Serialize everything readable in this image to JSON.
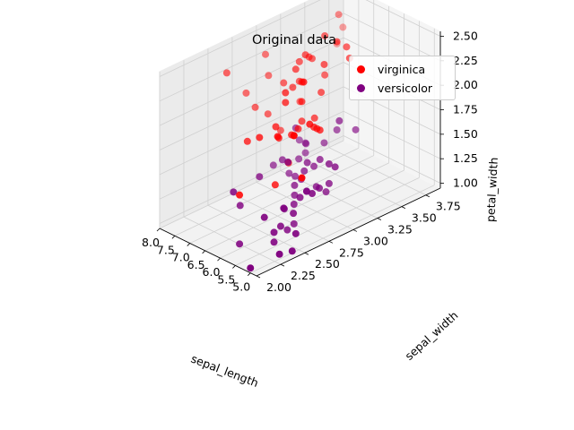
{
  "chart_data": {
    "type": "scatter",
    "projection": "3d",
    "title": "Original data",
    "xlabel": "sepal_length",
    "ylabel": "sepal_width",
    "zlabel": "petal_width",
    "xlim": [
      4.8,
      8.0
    ],
    "ylim": [
      2.0,
      3.9
    ],
    "zlim": [
      0.95,
      2.55
    ],
    "xticks": [
      "5.0",
      "5.5",
      "6.0",
      "6.5",
      "7.0",
      "7.5",
      "8.0"
    ],
    "yticks": [
      "2.00",
      "2.25",
      "2.50",
      "2.75",
      "3.00",
      "3.25",
      "3.50",
      "3.75"
    ],
    "zticks": [
      "1.00",
      "1.25",
      "1.50",
      "1.75",
      "2.00",
      "2.25",
      "2.50"
    ],
    "grid": true,
    "legend_position": "top-right",
    "series": [
      {
        "name": "virginica",
        "color": "#ff0000",
        "points": [
          [
            6.3,
            3.3,
            2.5
          ],
          [
            5.8,
            2.7,
            1.9
          ],
          [
            7.1,
            3.0,
            2.1
          ],
          [
            6.3,
            2.9,
            1.8
          ],
          [
            6.5,
            3.0,
            2.2
          ],
          [
            7.6,
            3.0,
            2.1
          ],
          [
            4.9,
            2.5,
            1.7
          ],
          [
            7.3,
            2.9,
            1.8
          ],
          [
            6.7,
            2.5,
            1.8
          ],
          [
            7.2,
            3.6,
            2.5
          ],
          [
            6.5,
            3.2,
            2.0
          ],
          [
            6.4,
            2.7,
            1.9
          ],
          [
            6.8,
            3.0,
            2.1
          ],
          [
            5.7,
            2.5,
            2.0
          ],
          [
            5.8,
            2.8,
            2.4
          ],
          [
            6.4,
            3.2,
            2.3
          ],
          [
            6.5,
            3.0,
            1.8
          ],
          [
            7.7,
            3.8,
            2.2
          ],
          [
            7.7,
            2.6,
            2.3
          ],
          [
            6.0,
            2.2,
            1.5
          ],
          [
            6.9,
            3.2,
            2.3
          ],
          [
            5.6,
            2.8,
            2.0
          ],
          [
            7.7,
            2.8,
            2.0
          ],
          [
            6.3,
            2.7,
            1.8
          ],
          [
            6.7,
            3.3,
            2.1
          ],
          [
            7.2,
            3.2,
            1.8
          ],
          [
            6.2,
            2.8,
            1.8
          ],
          [
            6.1,
            3.0,
            1.8
          ],
          [
            6.4,
            2.8,
            2.1
          ],
          [
            7.2,
            3.0,
            1.6
          ],
          [
            7.4,
            2.8,
            1.9
          ],
          [
            7.9,
            3.8,
            2.0
          ],
          [
            6.4,
            2.8,
            2.2
          ],
          [
            6.3,
            2.8,
            1.5
          ],
          [
            6.1,
            2.6,
            1.4
          ],
          [
            7.7,
            3.0,
            2.3
          ],
          [
            6.3,
            3.4,
            2.4
          ],
          [
            6.4,
            3.1,
            1.8
          ],
          [
            6.0,
            3.0,
            1.8
          ],
          [
            6.9,
            3.1,
            2.1
          ],
          [
            6.7,
            3.1,
            2.4
          ],
          [
            6.9,
            3.1,
            2.3
          ],
          [
            5.8,
            2.7,
            1.9
          ],
          [
            6.8,
            3.2,
            2.3
          ],
          [
            6.7,
            3.3,
            2.5
          ],
          [
            6.7,
            3.0,
            2.3
          ],
          [
            6.3,
            2.5,
            1.9
          ],
          [
            6.5,
            3.0,
            2.0
          ],
          [
            6.2,
            3.4,
            2.3
          ],
          [
            5.9,
            3.0,
            1.8
          ]
        ]
      },
      {
        "name": "versicolor",
        "color": "#800080",
        "points": [
          [
            7.0,
            3.2,
            1.4
          ],
          [
            6.4,
            3.2,
            1.5
          ],
          [
            6.9,
            3.1,
            1.5
          ],
          [
            5.5,
            2.3,
            1.3
          ],
          [
            6.5,
            2.8,
            1.5
          ],
          [
            5.7,
            2.8,
            1.3
          ],
          [
            6.3,
            3.3,
            1.6
          ],
          [
            4.9,
            2.4,
            1.0
          ],
          [
            6.6,
            2.9,
            1.3
          ],
          [
            5.2,
            2.7,
            1.4
          ],
          [
            5.0,
            2.0,
            1.0
          ],
          [
            5.9,
            3.0,
            1.5
          ],
          [
            6.0,
            2.2,
            1.0
          ],
          [
            6.1,
            2.9,
            1.4
          ],
          [
            5.6,
            2.9,
            1.3
          ],
          [
            6.7,
            3.1,
            1.4
          ],
          [
            5.6,
            3.0,
            1.5
          ],
          [
            5.8,
            2.7,
            1.0
          ],
          [
            6.2,
            2.2,
            1.5
          ],
          [
            5.6,
            2.5,
            1.1
          ],
          [
            5.9,
            3.2,
            1.8
          ],
          [
            6.1,
            2.8,
            1.3
          ],
          [
            6.3,
            2.5,
            1.5
          ],
          [
            6.1,
            2.8,
            1.2
          ],
          [
            6.4,
            2.9,
            1.3
          ],
          [
            6.6,
            3.0,
            1.4
          ],
          [
            6.8,
            2.8,
            1.4
          ],
          [
            6.7,
            3.0,
            1.7
          ],
          [
            6.0,
            2.9,
            1.5
          ],
          [
            5.7,
            2.6,
            1.0
          ],
          [
            5.5,
            2.4,
            1.1
          ],
          [
            5.5,
            2.4,
            1.0
          ],
          [
            5.8,
            2.7,
            1.2
          ],
          [
            6.0,
            2.7,
            1.6
          ],
          [
            5.4,
            3.0,
            1.5
          ],
          [
            6.0,
            3.4,
            1.6
          ],
          [
            6.7,
            3.1,
            1.5
          ],
          [
            6.3,
            2.3,
            1.3
          ],
          [
            5.6,
            3.0,
            1.3
          ],
          [
            5.5,
            2.5,
            1.3
          ],
          [
            5.5,
            2.6,
            1.2
          ],
          [
            6.1,
            3.0,
            1.4
          ],
          [
            5.8,
            2.6,
            1.2
          ],
          [
            5.0,
            2.3,
            1.0
          ],
          [
            5.6,
            2.7,
            1.3
          ],
          [
            5.7,
            3.0,
            1.2
          ],
          [
            5.7,
            2.9,
            1.3
          ],
          [
            6.2,
            2.9,
            1.3
          ],
          [
            5.1,
            2.5,
            1.1
          ],
          [
            5.7,
            2.8,
            1.3
          ]
        ]
      }
    ]
  }
}
